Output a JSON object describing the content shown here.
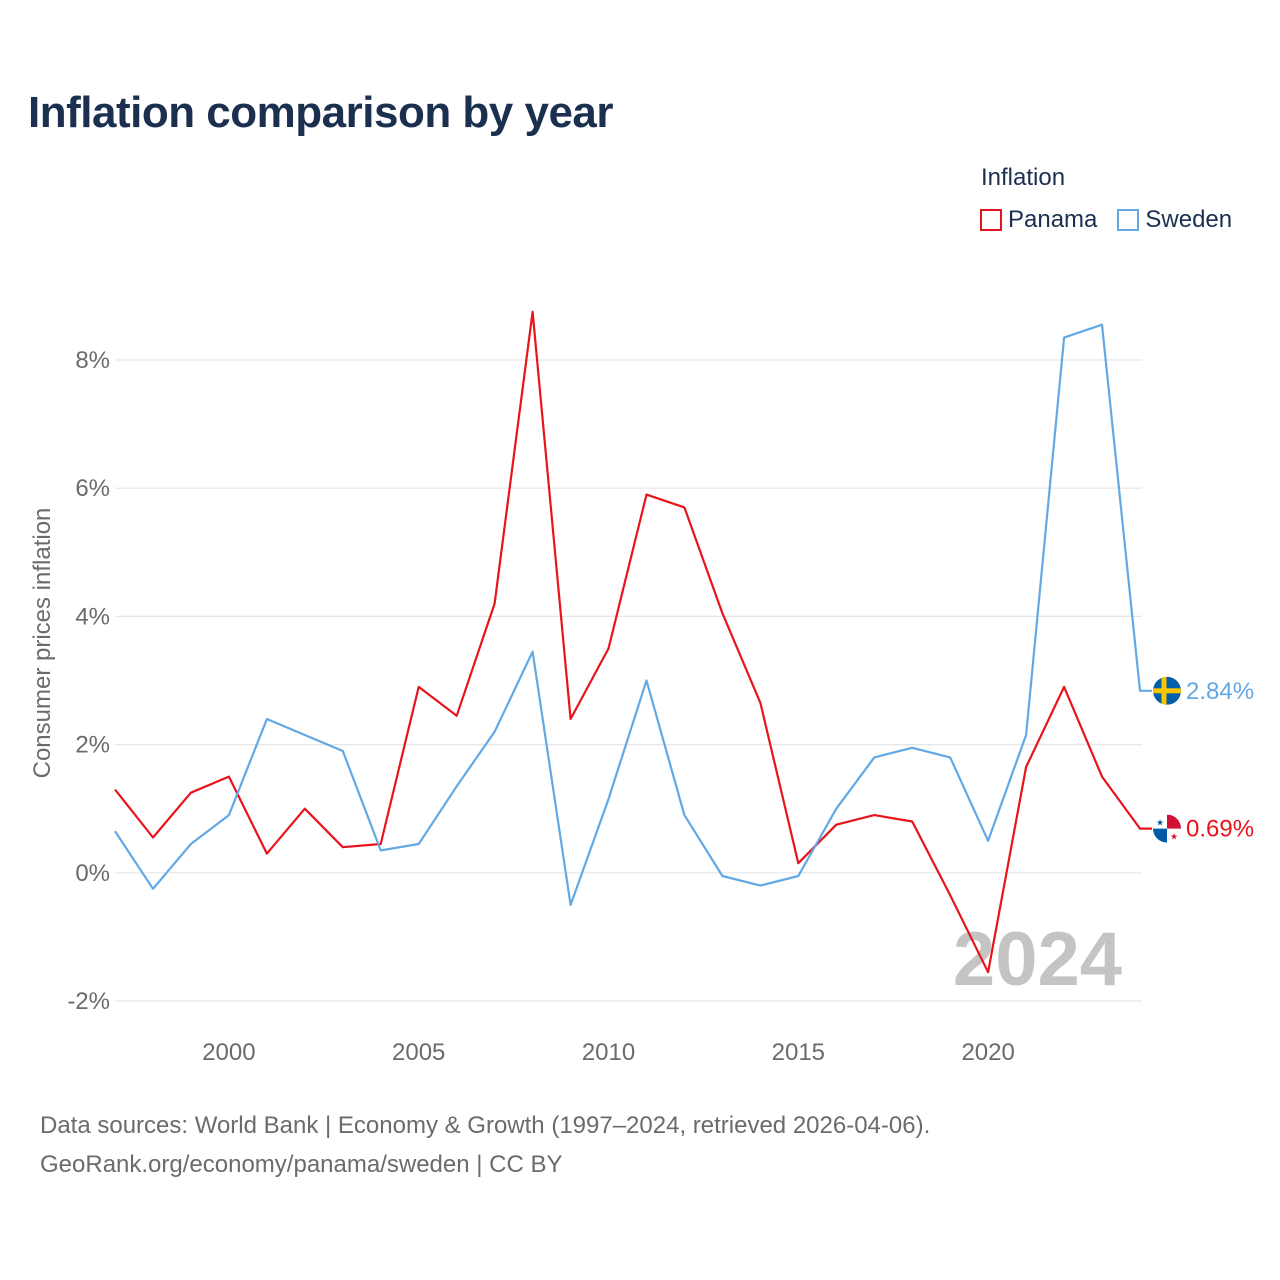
{
  "title": "Inflation comparison by year",
  "legend": {
    "title": "Inflation",
    "items": [
      {
        "name": "Panama",
        "color": "#e8141b"
      },
      {
        "name": "Sweden",
        "color": "#62a8e5"
      }
    ]
  },
  "chart_data": {
    "type": "line",
    "title": "Inflation comparison by year",
    "xlabel": "",
    "ylabel": "Consumer prices inflation",
    "xlim": [
      1997,
      2024
    ],
    "ylim": [
      -2,
      8
    ],
    "x_ticks": [
      2000,
      2005,
      2010,
      2015,
      2020
    ],
    "y_ticks": [
      -2,
      0,
      2,
      4,
      6,
      8
    ],
    "y_tick_labels": [
      "-2%",
      "0%",
      "2%",
      "4%",
      "6%",
      "8%"
    ],
    "x": [
      1997,
      1998,
      1999,
      2000,
      2001,
      2002,
      2003,
      2004,
      2005,
      2006,
      2007,
      2008,
      2009,
      2010,
      2011,
      2012,
      2013,
      2014,
      2015,
      2016,
      2017,
      2018,
      2019,
      2020,
      2021,
      2022,
      2023,
      2024
    ],
    "series": [
      {
        "name": "Panama",
        "color": "#e8141b",
        "values": [
          1.3,
          0.55,
          1.25,
          1.5,
          0.3,
          1.0,
          0.4,
          0.45,
          2.9,
          2.45,
          4.2,
          8.75,
          2.4,
          3.5,
          5.9,
          5.7,
          4.05,
          2.65,
          0.15,
          0.75,
          0.9,
          0.8,
          -0.35,
          -1.55,
          1.65,
          2.9,
          1.5,
          0.69
        ],
        "end_label": "0.69%"
      },
      {
        "name": "Sweden",
        "color": "#62a8e5",
        "values": [
          0.65,
          -0.25,
          0.45,
          0.9,
          2.4,
          2.15,
          1.9,
          0.35,
          0.45,
          1.35,
          2.2,
          3.45,
          -0.5,
          1.15,
          3.0,
          0.9,
          -0.05,
          -0.2,
          -0.05,
          1.0,
          1.8,
          1.95,
          1.8,
          0.5,
          2.15,
          8.35,
          8.55,
          2.84
        ],
        "end_label": "2.84%"
      }
    ],
    "grid": true,
    "watermark_year": "2024"
  },
  "footer": {
    "line1": "Data sources: World Bank | Economy & Growth (1997–2024, retrieved 2026-04-06).",
    "line2": "GeoRank.org/economy/panama/sweden | CC BY"
  }
}
